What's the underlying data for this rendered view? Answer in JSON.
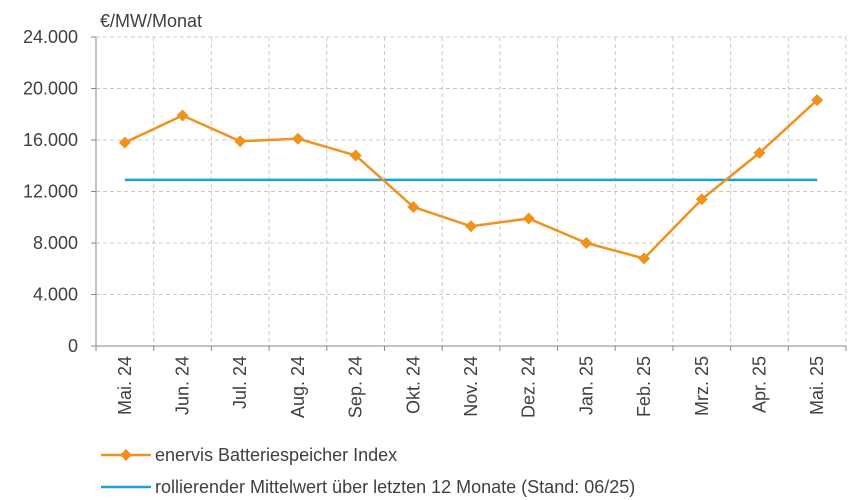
{
  "colors": {
    "index": "#F0921E",
    "average": "#1AA3D9"
  },
  "chart_data": {
    "type": "line",
    "unit_label": "€/MW/Monat",
    "categories": [
      "Mai. 24",
      "Jun. 24",
      "Jul. 24",
      "Aug. 24",
      "Sep. 24",
      "Okt. 24",
      "Nov. 24",
      "Dez. 24",
      "Jan. 25",
      "Feb. 25",
      "Mrz. 25",
      "Apr. 25",
      "Mai. 25"
    ],
    "y_ticks": [
      "0",
      "4.000",
      "8.000",
      "12.000",
      "16.000",
      "20.000",
      "24.000"
    ],
    "y_tick_values": [
      0,
      4000,
      8000,
      12000,
      16000,
      20000,
      24000
    ],
    "ylim": [
      0,
      24000
    ],
    "grid": true,
    "legend_position": "bottom-left",
    "series": [
      {
        "name": "enervis Batteriespeicher Index",
        "marker": "diamond",
        "values": [
          15800,
          17900,
          15900,
          16100,
          14800,
          10800,
          9300,
          9900,
          8000,
          6800,
          11400,
          15000,
          19100
        ]
      },
      {
        "name": "rollierender Mittelwert über letzten 12 Monate (Stand: 06/25)",
        "marker": "none",
        "values": [
          12900,
          12900,
          12900,
          12900,
          12900,
          12900,
          12900,
          12900,
          12900,
          12900,
          12900,
          12900,
          12900
        ]
      }
    ]
  }
}
